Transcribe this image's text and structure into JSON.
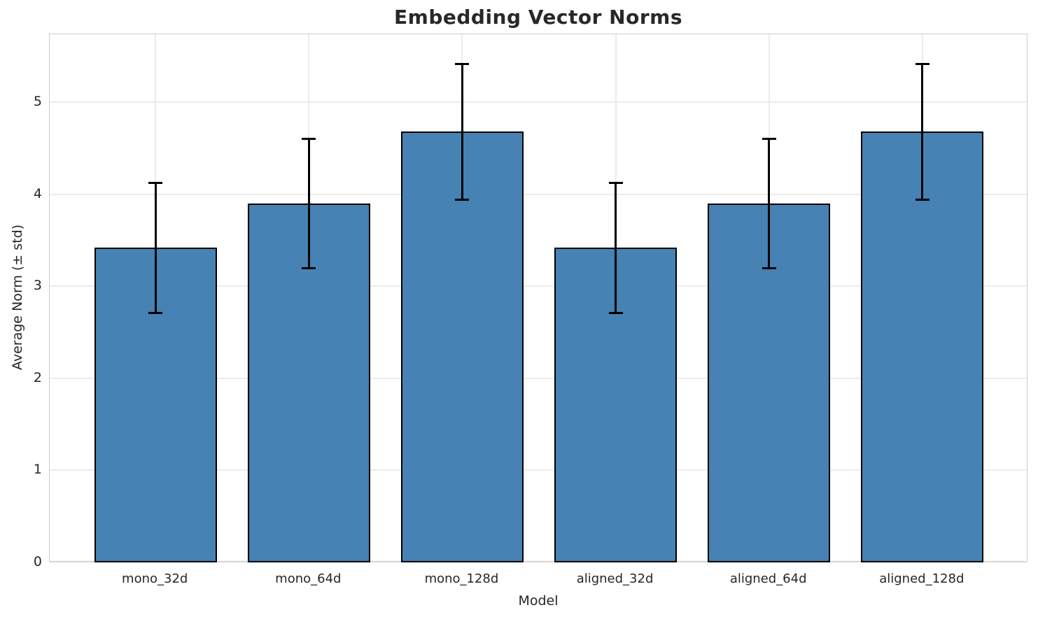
{
  "chart_data": {
    "type": "bar",
    "title": "Embedding Vector Norms",
    "xlabel": "Model",
    "ylabel": "Average Norm (± std)",
    "categories": [
      "mono_32d",
      "mono_64d",
      "mono_128d",
      "aligned_32d",
      "aligned_64d",
      "aligned_128d"
    ],
    "values": [
      3.42,
      3.9,
      4.68,
      3.42,
      3.9,
      4.68
    ],
    "errors": [
      0.71,
      0.71,
      0.74,
      0.71,
      0.71,
      0.74
    ],
    "yticks": [
      0,
      1,
      2,
      3,
      4,
      5
    ],
    "ylim": [
      0,
      5.74
    ],
    "grid": "both",
    "legend": "none",
    "bar_width_units": 0.8,
    "x_margin_units": 0.69,
    "colors": {
      "bar_fill": "#4682b4",
      "bar_edge": "#000000",
      "error_bar": "#000000",
      "grid": "#ebebeb",
      "spine": "#cccccc",
      "text": "#262626",
      "title": "#282828",
      "background": "#ffffff"
    }
  }
}
